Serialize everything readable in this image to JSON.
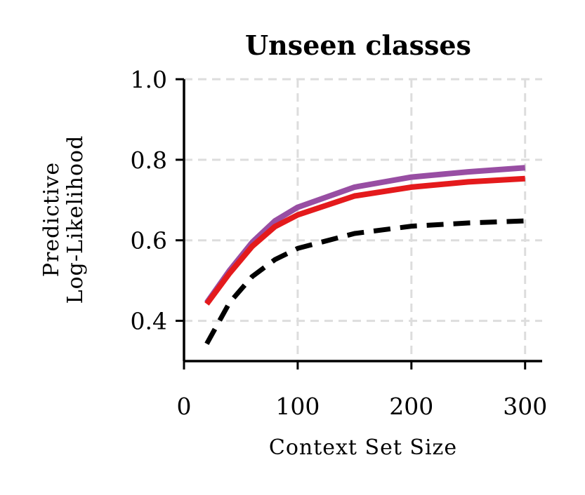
{
  "chart_data": {
    "type": "line",
    "title": "Unseen classes",
    "xlabel": "Context Set Size",
    "ylabel": [
      "Predictive",
      "Log-Likelihood"
    ],
    "xlim": [
      0,
      315
    ],
    "ylim": [
      0.3,
      1.0
    ],
    "xticks": [
      0,
      100,
      200,
      300
    ],
    "xtick_labels": [
      "0",
      "100",
      "200",
      "300"
    ],
    "yticks": [
      0.4,
      0.6,
      0.8,
      1.0
    ],
    "ytick_labels": [
      "0.4",
      "0.6",
      "0.8",
      "1.0"
    ],
    "grid": true,
    "series": [
      {
        "color": "#984ea3",
        "style": "solid",
        "x": [
          20,
          40,
          60,
          80,
          100,
          150,
          200,
          250,
          300
        ],
        "y": [
          0.445,
          0.525,
          0.595,
          0.648,
          0.682,
          0.732,
          0.757,
          0.77,
          0.78
        ]
      },
      {
        "color": "#e41a1c",
        "style": "solid",
        "x": [
          20,
          40,
          60,
          80,
          100,
          150,
          200,
          250,
          300
        ],
        "y": [
          0.442,
          0.518,
          0.585,
          0.634,
          0.663,
          0.71,
          0.732,
          0.745,
          0.753
        ]
      },
      {
        "color": "#000000",
        "style": "dashed",
        "x": [
          20,
          40,
          60,
          80,
          100,
          150,
          200,
          250,
          300
        ],
        "y": [
          0.343,
          0.445,
          0.51,
          0.552,
          0.58,
          0.617,
          0.635,
          0.643,
          0.648
        ]
      }
    ]
  }
}
